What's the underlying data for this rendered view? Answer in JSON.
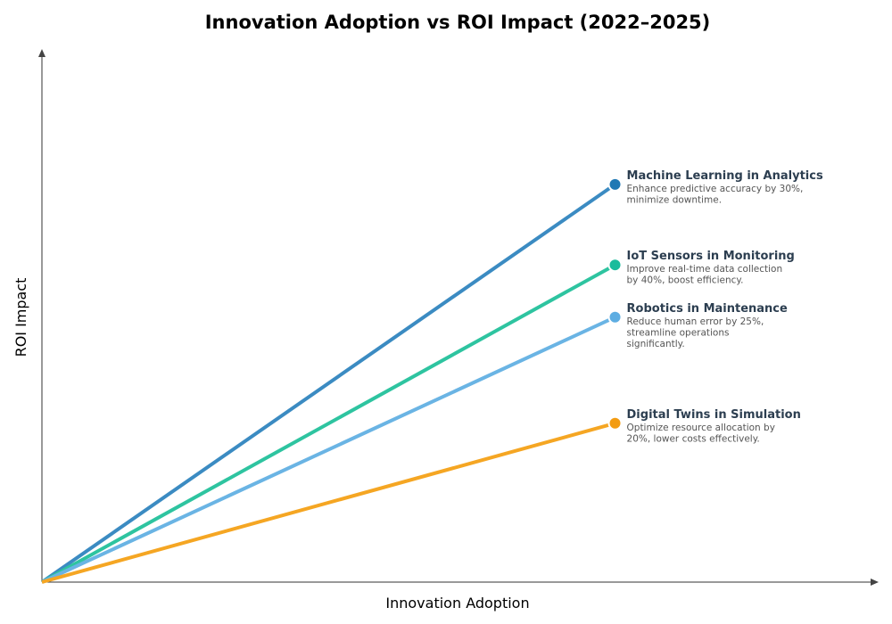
{
  "chart_data": {
    "type": "line",
    "title": "Innovation Adoption vs ROI Impact (2022–2025)",
    "xlabel": "Innovation Adoption",
    "ylabel": "ROI Impact",
    "xlim": [
      0,
      1
    ],
    "ylim": [
      0,
      1
    ],
    "grid": false,
    "ticks_shown": false,
    "series": [
      {
        "name": "Machine Learning in Analytics",
        "description": [
          "Enhance predictive accuracy by 30%,",
          "minimize downtime."
        ],
        "x": [
          0,
          0.685
        ],
        "y": [
          0,
          0.746
        ],
        "line_color": "#3b8bc2",
        "marker_color": "#1f78b4"
      },
      {
        "name": "IoT Sensors in Monitoring",
        "description": [
          "Improve real-time data collection",
          "by 40%, boost efficiency."
        ],
        "x": [
          0,
          0.685
        ],
        "y": [
          0,
          0.595
        ],
        "line_color": "#2ec4a0",
        "marker_color": "#1abc9c"
      },
      {
        "name": "Robotics in Maintenance",
        "description": [
          "Reduce human error by 25%,",
          "streamline operations",
          "significantly."
        ],
        "x": [
          0,
          0.685
        ],
        "y": [
          0,
          0.497
        ],
        "line_color": "#6ab4e4",
        "marker_color": "#5dade2"
      },
      {
        "name": "Digital Twins in Simulation",
        "description": [
          "Optimize resource allocation by",
          "20%, lower costs effectively."
        ],
        "x": [
          0,
          0.685
        ],
        "y": [
          0,
          0.298
        ],
        "line_color": "#f5a623",
        "marker_color": "#f39c12"
      }
    ]
  }
}
